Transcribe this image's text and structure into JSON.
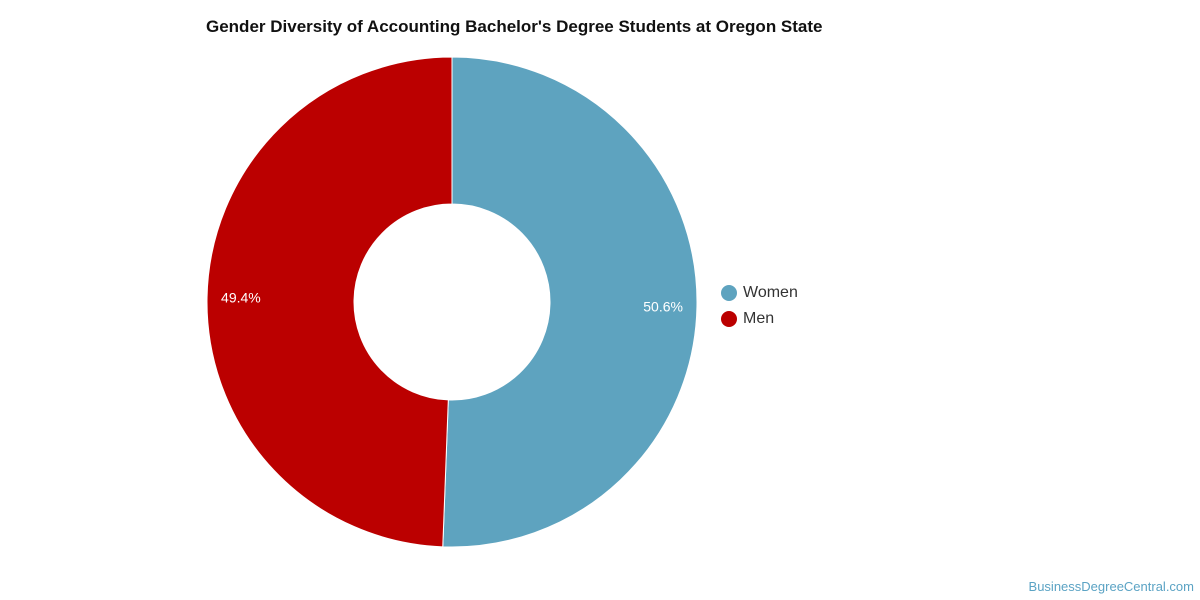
{
  "chart_data": {
    "type": "pie",
    "title": "Gender Diversity of Accounting Bachelor's Degree Students at Oregon State",
    "donut": true,
    "slices": [
      {
        "label": "Women",
        "value": 50.6,
        "display": "50.6%",
        "color": "#5ea3bf"
      },
      {
        "label": "Men",
        "value": 49.4,
        "display": "49.4%",
        "color": "#bb0000"
      }
    ],
    "legend_position": "right"
  },
  "watermark": "BusinessDegreeCentral.com"
}
